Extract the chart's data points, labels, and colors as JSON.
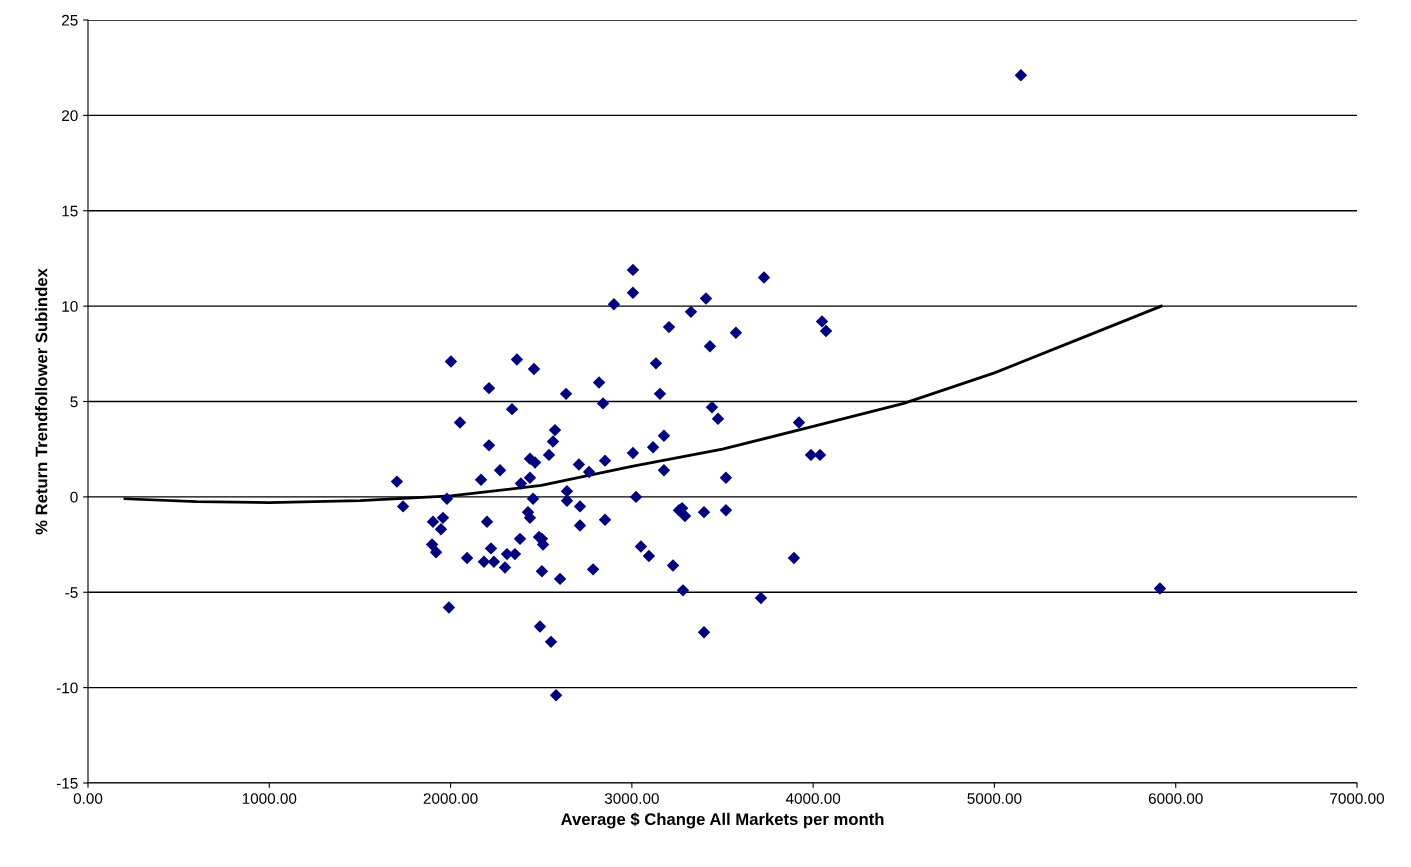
{
  "chart_data": {
    "type": "scatter",
    "xlabel": "Average $ Change All Markets per month",
    "ylabel": "% Return Trendfollower Subindex",
    "xlim": [
      0,
      7000
    ],
    "ylim": [
      -15,
      25
    ],
    "xticks": [
      {
        "value": 0,
        "label": "0.00"
      },
      {
        "value": 1000,
        "label": "1000.00"
      },
      {
        "value": 2000,
        "label": "2000.00"
      },
      {
        "value": 3000,
        "label": "3000.00"
      },
      {
        "value": 4000,
        "label": "4000.00"
      },
      {
        "value": 5000,
        "label": "5000.00"
      },
      {
        "value": 6000,
        "label": "6000.00"
      },
      {
        "value": 7000,
        "label": "7000.00"
      }
    ],
    "yticks": [
      -15,
      -10,
      -5,
      0,
      5,
      10,
      15,
      20,
      25
    ],
    "grid": "y",
    "legend": false,
    "series": [
      {
        "color": "#000080",
        "marker": "diamond",
        "x": [
          1704,
          1738,
          2002,
          2052,
          1903,
          1958,
          1947,
          1898,
          1920,
          1980,
          1991,
          2091,
          2168,
          2212,
          2212,
          2201,
          2223,
          2184,
          2239,
          2273,
          2300,
          2339,
          2311,
          2355,
          2366,
          2383,
          2388,
          2438,
          2427,
          2438,
          2438,
          2466,
          2460,
          2455,
          2488,
          2504,
          2510,
          2504,
          2493,
          2543,
          2554,
          2565,
          2576,
          2604,
          2582,
          2637,
          2642,
          2642,
          2714,
          2708,
          2714,
          2764,
          2786,
          2819,
          2841,
          2852,
          2852,
          2901,
          3006,
          3006,
          3006,
          3023,
          3050,
          3094,
          3133,
          3155,
          3177,
          3205,
          3177,
          3227,
          3260,
          3117,
          3282,
          3326,
          3409,
          3729,
          3431,
          3574,
          3442,
          3475,
          3519,
          3277,
          3293,
          3398,
          3519,
          3398,
          3712,
          3894,
          3922,
          3988,
          4038,
          4049,
          4071,
          5146,
          5913
        ],
        "values": [
          0.8,
          -0.5,
          7.1,
          3.9,
          -1.3,
          -1.1,
          -1.7,
          -2.5,
          -2.9,
          -0.1,
          -5.8,
          -3.2,
          0.9,
          5.7,
          2.7,
          -1.3,
          -2.7,
          -3.4,
          -3.4,
          1.4,
          -3.7,
          4.6,
          -3.0,
          -3.0,
          7.2,
          -2.2,
          0.7,
          1.0,
          -0.8,
          -1.1,
          2.0,
          1.8,
          6.7,
          -0.1,
          -2.1,
          -2.2,
          -2.5,
          -3.9,
          -6.8,
          2.2,
          -7.6,
          2.9,
          3.5,
          -4.3,
          -10.4,
          5.4,
          0.3,
          -0.2,
          -0.5,
          1.7,
          -1.5,
          1.3,
          -3.8,
          6.0,
          4.9,
          1.9,
          -1.2,
          10.1,
          11.9,
          10.7,
          2.3,
          0.0,
          -2.6,
          -3.1,
          7.0,
          5.4,
          3.2,
          8.9,
          1.4,
          -3.6,
          -0.7,
          2.6,
          -4.9,
          9.7,
          10.4,
          11.5,
          7.9,
          8.6,
          4.7,
          4.1,
          1.0,
          -0.6,
          -1.0,
          -0.8,
          -0.7,
          -7.1,
          -5.3,
          -3.2,
          3.9,
          2.2,
          2.2,
          9.2,
          8.7,
          22.1,
          -4.8
        ]
      },
      {
        "type": "line",
        "color": "#000000",
        "marker": "none",
        "line_style": "solid",
        "x": [
          204,
          600,
          1000,
          1500,
          2000,
          2500,
          3000,
          3500,
          4000,
          4500,
          5000,
          5500,
          5920
        ],
        "values": [
          -0.1,
          -0.25,
          -0.3,
          -0.2,
          0.05,
          0.6,
          1.6,
          2.5,
          3.7,
          4.9,
          6.5,
          8.4,
          10.0
        ]
      }
    ]
  }
}
